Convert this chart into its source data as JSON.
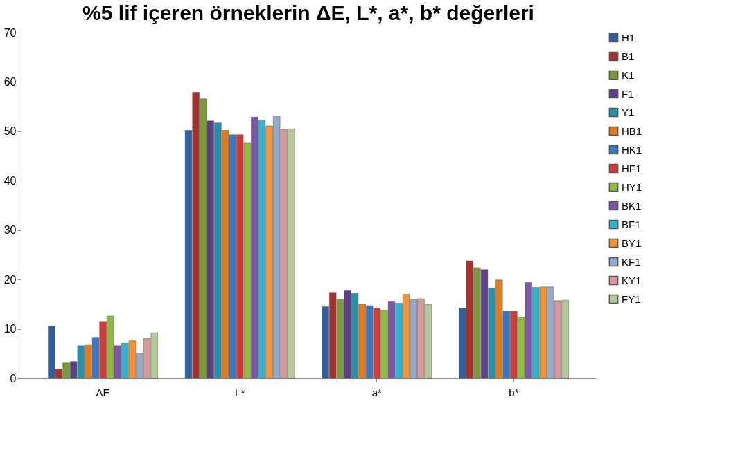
{
  "chart_data": {
    "type": "bar",
    "title": "%5 lif içeren örneklerin ΔE, L*, a*, b* değerleri",
    "categories": [
      "ΔE",
      "L*",
      "a*",
      "b*"
    ],
    "series": [
      {
        "name": "H1",
        "color": "#2f5f9e",
        "values": [
          10.5,
          50.2,
          14.5,
          14.2
        ]
      },
      {
        "name": "B1",
        "color": "#a8302d",
        "values": [
          1.9,
          57.9,
          17.4,
          23.8
        ]
      },
      {
        "name": "K1",
        "color": "#7a9a3a",
        "values": [
          3.1,
          56.6,
          16.0,
          22.4
        ]
      },
      {
        "name": "F1",
        "color": "#5e3f88",
        "values": [
          3.4,
          52.1,
          17.7,
          22.0
        ]
      },
      {
        "name": "Y1",
        "color": "#2a8fa8",
        "values": [
          6.6,
          51.7,
          17.2,
          18.3
        ]
      },
      {
        "name": "HB1",
        "color": "#e07b20",
        "values": [
          6.7,
          50.2,
          15.0,
          19.9
        ]
      },
      {
        "name": "HK1",
        "color": "#3a78c2",
        "values": [
          8.3,
          49.3,
          14.7,
          13.6
        ]
      },
      {
        "name": "HF1",
        "color": "#cf3b3b",
        "values": [
          11.5,
          49.3,
          14.2,
          13.6
        ]
      },
      {
        "name": "HY1",
        "color": "#8fbc3f",
        "values": [
          12.6,
          47.6,
          13.8,
          12.4
        ]
      },
      {
        "name": "BK1",
        "color": "#7b55a6",
        "values": [
          6.6,
          52.9,
          15.6,
          19.4
        ]
      },
      {
        "name": "BF1",
        "color": "#2fb3cf",
        "values": [
          7.1,
          52.3,
          15.2,
          18.4
        ]
      },
      {
        "name": "BY1",
        "color": "#f79332",
        "values": [
          7.6,
          51.1,
          17.0,
          18.5
        ]
      },
      {
        "name": "KF1",
        "color": "#96aacc",
        "values": [
          5.1,
          53.0,
          15.9,
          18.5
        ]
      },
      {
        "name": "KY1",
        "color": "#d49a9a",
        "values": [
          8.1,
          50.4,
          16.1,
          15.7
        ]
      },
      {
        "name": "FY1",
        "color": "#b3c99a",
        "values": [
          9.2,
          50.5,
          14.9,
          15.8
        ]
      }
    ],
    "ylim": [
      0,
      70
    ],
    "yticks": [
      0,
      10,
      20,
      30,
      40,
      50,
      60,
      70
    ],
    "grid": false,
    "legend": "right"
  }
}
